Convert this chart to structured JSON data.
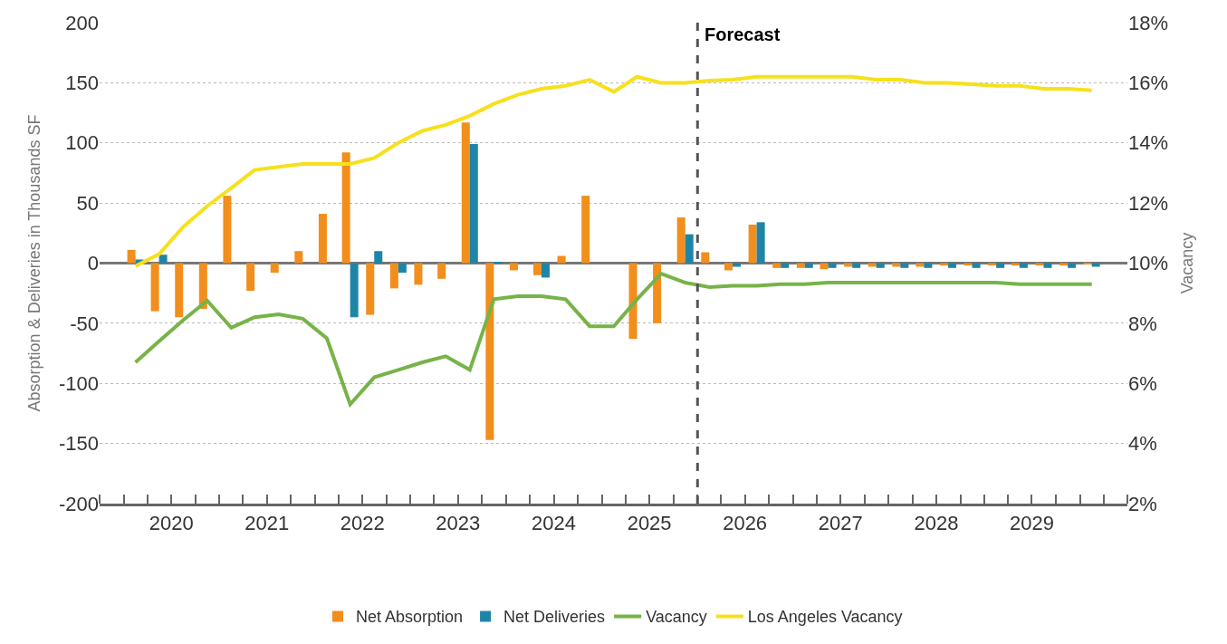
{
  "chart_data": {
    "type": "bar",
    "x": [
      "2020-02-15",
      "2020-05-15",
      "2020-08-15",
      "2020-11-15",
      "2021-02-15",
      "2021-05-15",
      "2021-08-15",
      "2021-11-15",
      "2022-02-15",
      "2022-05-15",
      "2022-08-15",
      "2022-11-15",
      "2023-02-15",
      "2023-05-15",
      "2023-08-15",
      "2023-11-15",
      "2024-02-15",
      "2024-05-15",
      "2024-08-15",
      "2024-11-15",
      "2025-02-15",
      "2025-05-15",
      "2025-08-15",
      "2025-11-15",
      "2026-02-15",
      "2026-05-15",
      "2026-08-15",
      "2026-11-15",
      "2027-02-15",
      "2027-05-15",
      "2027-08-15",
      "2027-11-15",
      "2028-02-15",
      "2028-05-15",
      "2028-08-15",
      "2028-11-15",
      "2029-02-15",
      "2029-05-15",
      "2029-08-15",
      "2029-11-15",
      "2030-02-15"
    ],
    "ylabel": "Absorption & Deliveries in Thousands SF",
    "y2label": "Vacancy",
    "series": [
      {
        "name": "Net Absorption",
        "color": "#f28e1c",
        "values": [
          11,
          -40,
          -45,
          -38,
          56,
          -23,
          -8,
          10,
          41,
          92,
          -43,
          -21,
          -18,
          -13,
          117,
          -147,
          -6,
          -10,
          6,
          56,
          0,
          -63,
          -50,
          38,
          9,
          -6,
          32,
          -4,
          -4,
          -5,
          -3,
          -3,
          -3,
          -3,
          -2,
          -2,
          -2,
          -2,
          -2,
          -2,
          -1
        ]
      },
      {
        "name": "Net Deliveries",
        "color": "#1f85a6",
        "values": [
          3,
          7,
          0,
          0,
          0,
          0,
          0,
          0,
          0,
          -45,
          10,
          -8,
          0,
          0,
          99,
          1,
          0,
          -12,
          0,
          0,
          0,
          0,
          0,
          24,
          0,
          -3,
          34,
          -4,
          -4,
          -4,
          -4,
          -4,
          -4,
          -4,
          -4,
          -4,
          -4,
          -4,
          -4,
          -4,
          -3
        ]
      },
      {
        "name": "Vacancy",
        "type": "line",
        "axis": "y2",
        "color": "#77b347",
        "values": [
          6.7,
          7.4,
          8.1,
          8.75,
          7.85,
          8.2,
          8.3,
          8.15,
          7.5,
          5.3,
          6.2,
          6.45,
          6.7,
          6.9,
          6.45,
          8.8,
          8.9,
          8.9,
          8.8,
          7.9,
          7.9,
          8.8,
          9.65,
          9.35,
          9.2,
          9.25,
          9.25,
          9.3,
          9.3,
          9.35,
          9.35,
          9.35,
          9.35,
          9.35,
          9.35,
          9.35,
          9.35,
          9.3,
          9.3,
          9.3,
          9.3
        ]
      },
      {
        "name": "Los Angeles Vacancy",
        "type": "line",
        "axis": "y2",
        "color": "#f7e01c",
        "values": [
          9.9,
          10.3,
          11.2,
          11.9,
          12.5,
          13.1,
          13.2,
          13.3,
          13.3,
          13.3,
          13.5,
          14.0,
          14.4,
          14.6,
          14.9,
          15.3,
          15.6,
          15.8,
          15.9,
          16.1,
          15.7,
          16.2,
          16.0,
          16.0,
          16.07,
          16.1,
          16.2,
          16.2,
          16.2,
          16.2,
          16.2,
          16.1,
          16.1,
          16.0,
          16.0,
          15.95,
          15.9,
          15.9,
          15.8,
          15.8,
          15.75
        ]
      }
    ],
    "xlim": [
      "2019-10",
      "2030-07"
    ],
    "xticks": [
      {
        "value": "2020-07",
        "label": "2020"
      },
      {
        "value": "2021-07",
        "label": "2021"
      },
      {
        "value": "2022-07",
        "label": "2022"
      },
      {
        "value": "2023-07",
        "label": "2023"
      },
      {
        "value": "2024-07",
        "label": "2024"
      },
      {
        "value": "2025-07",
        "label": "2025"
      },
      {
        "value": "2026-07",
        "label": "2026"
      },
      {
        "value": "2027-07",
        "label": "2027"
      },
      {
        "value": "2028-07",
        "label": "2028"
      },
      {
        "value": "2029-07",
        "label": "2029"
      }
    ],
    "ylim": [
      -200,
      200
    ],
    "yticks": [
      -200,
      -150,
      -100,
      -50,
      0,
      50,
      100,
      150,
      200
    ],
    "y2lim": [
      2,
      18
    ],
    "y2ticks": [
      {
        "value": 2,
        "label": "2%"
      },
      {
        "value": 4,
        "label": "4%"
      },
      {
        "value": 6,
        "label": "6%"
      },
      {
        "value": 8,
        "label": "8%"
      },
      {
        "value": 10,
        "label": "10%"
      },
      {
        "value": 12,
        "label": "12%"
      },
      {
        "value": 14,
        "label": "14%"
      },
      {
        "value": 16,
        "label": "16%"
      },
      {
        "value": 18,
        "label": "18%"
      }
    ],
    "ref_lines": [
      {
        "axis": "x",
        "value": "2026-01",
        "label": "Forecast",
        "color": "#555555",
        "line_style": "dashed"
      }
    ],
    "grid": "y",
    "legend": "bottom"
  }
}
